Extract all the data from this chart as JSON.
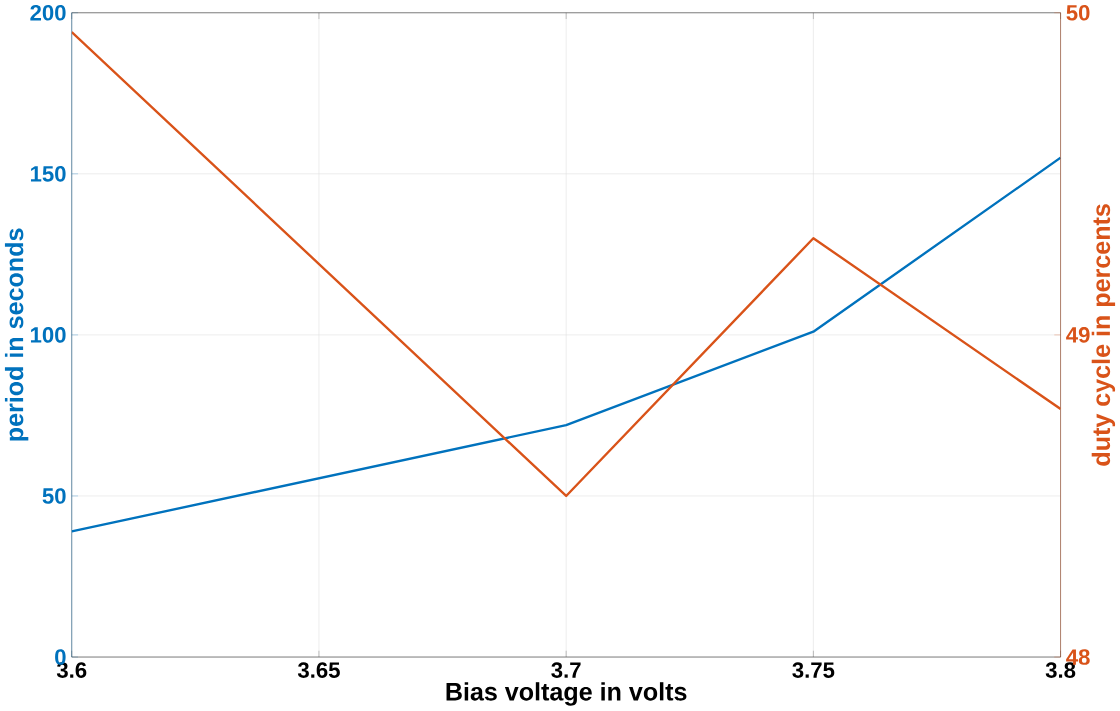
{
  "chart_data": {
    "type": "line",
    "xlabel": "Bias voltage in volts",
    "ylabel": "period in seconds",
    "y2label": "duty cycle in percents",
    "x": [
      3.6,
      3.7,
      3.75,
      3.8
    ],
    "series": [
      {
        "color": "#0072bd",
        "values": [
          39,
          72,
          101,
          155
        ]
      },
      {
        "color": "#d95319",
        "axis": "y2",
        "values": [
          49.94,
          48.5,
          49.3,
          48.77
        ]
      }
    ],
    "xlim": [
      3.6,
      3.8
    ],
    "xticks": [
      3.6,
      3.65,
      3.7,
      3.75,
      3.8
    ],
    "ylim": [
      0,
      200
    ],
    "yticks": [
      0,
      50,
      100,
      150,
      200
    ],
    "y2lim": [
      48,
      50
    ],
    "y2ticks": [
      48,
      49,
      50
    ],
    "grid": true,
    "marker": "none",
    "line_style": "solid"
  }
}
